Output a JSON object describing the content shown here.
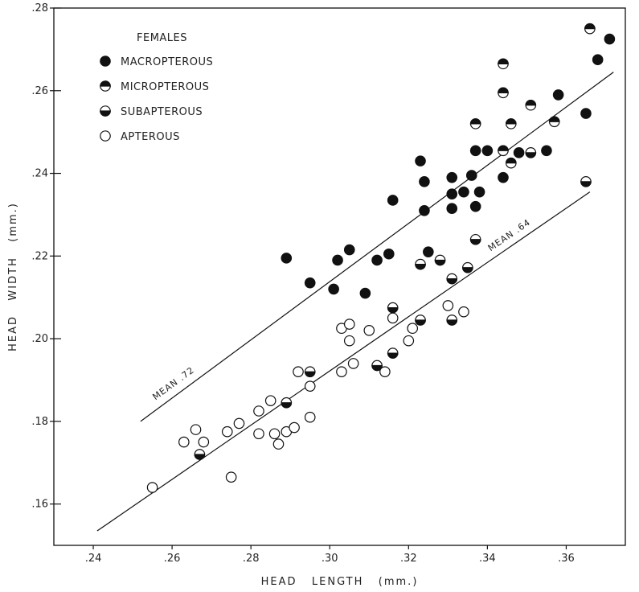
{
  "chart_data": {
    "type": "scatter",
    "xlabel": "HEAD   LENGTH   (mm.)",
    "ylabel": "HEAD   WIDTH   (mm.)",
    "xlim": [
      0.23,
      0.375
    ],
    "ylim": [
      0.15,
      0.28
    ],
    "xticks": [
      0.24,
      0.26,
      0.28,
      0.3,
      0.32,
      0.34,
      0.36
    ],
    "xtick_labels": [
      ".24",
      ".26",
      ".28",
      ".30",
      ".32",
      ".34",
      ".36"
    ],
    "yticks": [
      0.16,
      0.18,
      0.2,
      0.22,
      0.24,
      0.26,
      0.28
    ],
    "ytick_labels": [
      ".16",
      ".18",
      ".20",
      ".22",
      ".24",
      ".26",
      ".28"
    ],
    "legend": {
      "title": "FEMALES",
      "placement": "top-left",
      "entries": [
        {
          "name": "MACROPTEROUS",
          "marker": "filled"
        },
        {
          "name": "MICROPTEROUS",
          "marker": "top-filled"
        },
        {
          "name": "SUBAPTEROUS",
          "marker": "bottom-filled"
        },
        {
          "name": "APTEROUS",
          "marker": "open"
        }
      ]
    },
    "lines": [
      {
        "label": "MEAN .72",
        "x": [
          0.252,
          0.372
        ],
        "y": [
          0.18,
          0.2645
        ]
      },
      {
        "label": "MEAN .64",
        "x": [
          0.241,
          0.366
        ],
        "y": [
          0.1535,
          0.2355
        ]
      }
    ],
    "series": [
      {
        "name": "MACROPTEROUS",
        "marker": "filled",
        "points": [
          [
            0.289,
            0.2195
          ],
          [
            0.295,
            0.2135
          ],
          [
            0.301,
            0.212
          ],
          [
            0.302,
            0.219
          ],
          [
            0.305,
            0.2215
          ],
          [
            0.309,
            0.211
          ],
          [
            0.312,
            0.219
          ],
          [
            0.315,
            0.2205
          ],
          [
            0.316,
            0.2335
          ],
          [
            0.323,
            0.243
          ],
          [
            0.324,
            0.238
          ],
          [
            0.324,
            0.231
          ],
          [
            0.325,
            0.221
          ],
          [
            0.331,
            0.239
          ],
          [
            0.331,
            0.235
          ],
          [
            0.331,
            0.2315
          ],
          [
            0.334,
            0.2355
          ],
          [
            0.336,
            0.2395
          ],
          [
            0.337,
            0.232
          ],
          [
            0.337,
            0.2455
          ],
          [
            0.338,
            0.2355
          ],
          [
            0.34,
            0.2455
          ],
          [
            0.344,
            0.239
          ],
          [
            0.348,
            0.245
          ],
          [
            0.355,
            0.2455
          ],
          [
            0.365,
            0.2545
          ],
          [
            0.371,
            0.2725
          ],
          [
            0.368,
            0.2675
          ],
          [
            0.358,
            0.259
          ]
        ]
      },
      {
        "name": "MICROPTEROUS",
        "marker": "top-filled",
        "points": [
          [
            0.337,
            0.252
          ],
          [
            0.344,
            0.2665
          ],
          [
            0.344,
            0.2595
          ],
          [
            0.344,
            0.2455
          ],
          [
            0.346,
            0.252
          ],
          [
            0.346,
            0.2425
          ],
          [
            0.351,
            0.2565
          ],
          [
            0.357,
            0.2525
          ],
          [
            0.366,
            0.275
          ]
        ]
      },
      {
        "name": "SUBAPTEROUS",
        "marker": "bottom-filled",
        "points": [
          [
            0.267,
            0.172
          ],
          [
            0.289,
            0.1845
          ],
          [
            0.295,
            0.192
          ],
          [
            0.312,
            0.1935
          ],
          [
            0.316,
            0.2075
          ],
          [
            0.316,
            0.1965
          ],
          [
            0.323,
            0.2045
          ],
          [
            0.323,
            0.218
          ],
          [
            0.328,
            0.219
          ],
          [
            0.331,
            0.2145
          ],
          [
            0.331,
            0.2045
          ],
          [
            0.335,
            0.2172
          ],
          [
            0.337,
            0.224
          ],
          [
            0.351,
            0.245
          ],
          [
            0.365,
            0.238
          ]
        ]
      },
      {
        "name": "APTEROUS",
        "marker": "open",
        "points": [
          [
            0.255,
            0.164
          ],
          [
            0.263,
            0.175
          ],
          [
            0.266,
            0.178
          ],
          [
            0.268,
            0.175
          ],
          [
            0.274,
            0.1775
          ],
          [
            0.275,
            0.1665
          ],
          [
            0.277,
            0.1795
          ],
          [
            0.282,
            0.1825
          ],
          [
            0.282,
            0.177
          ],
          [
            0.285,
            0.185
          ],
          [
            0.286,
            0.177
          ],
          [
            0.287,
            0.1745
          ],
          [
            0.289,
            0.1775
          ],
          [
            0.291,
            0.1785
          ],
          [
            0.292,
            0.192
          ],
          [
            0.295,
            0.1885
          ],
          [
            0.295,
            0.181
          ],
          [
            0.303,
            0.2025
          ],
          [
            0.303,
            0.192
          ],
          [
            0.305,
            0.1995
          ],
          [
            0.305,
            0.2035
          ],
          [
            0.306,
            0.194
          ],
          [
            0.31,
            0.202
          ],
          [
            0.314,
            0.192
          ],
          [
            0.316,
            0.205
          ],
          [
            0.32,
            0.1995
          ],
          [
            0.321,
            0.2025
          ],
          [
            0.33,
            0.208
          ],
          [
            0.334,
            0.2065
          ]
        ]
      }
    ]
  }
}
